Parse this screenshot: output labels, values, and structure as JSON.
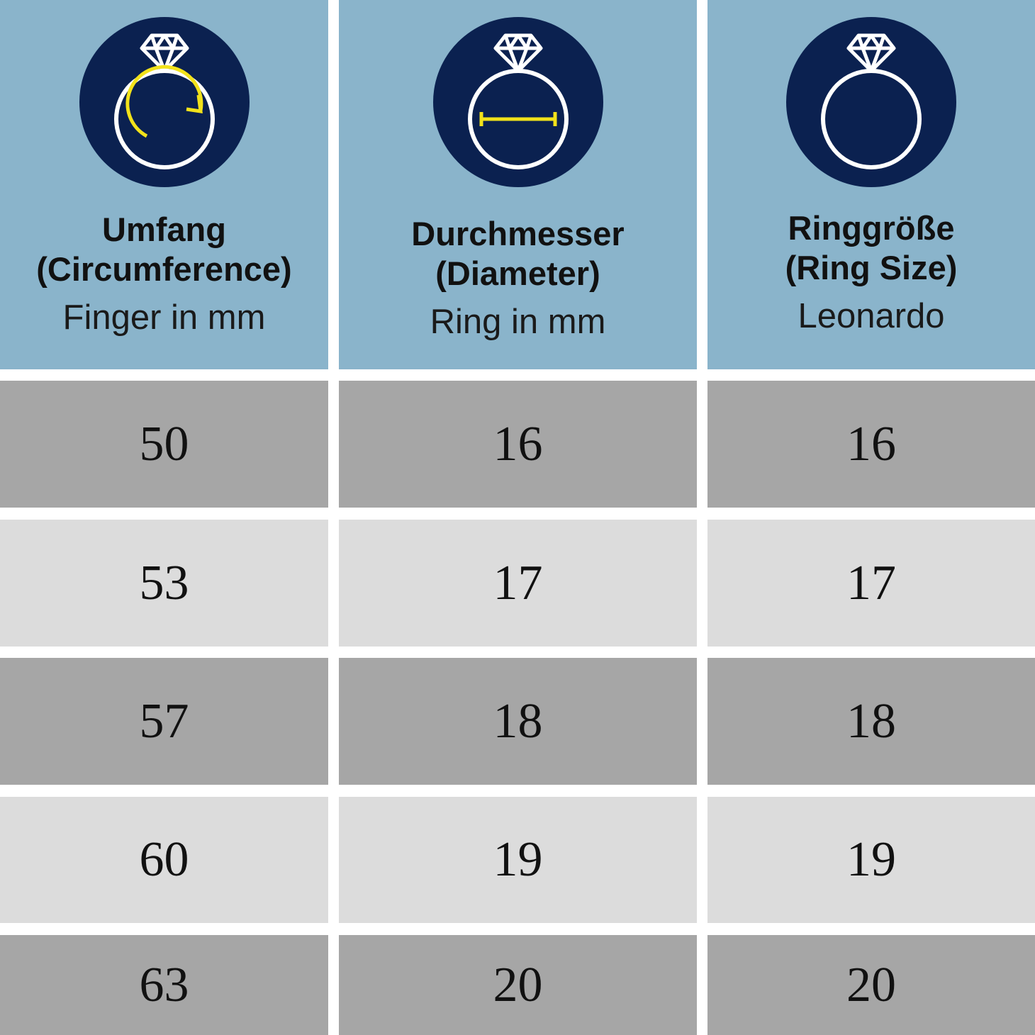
{
  "colors": {
    "header": "#8ab4cb",
    "icon_circle": "#0b2150",
    "accent": "#f2e21a",
    "row_dark": "#a6a6a6",
    "row_light": "#dcdcdc"
  },
  "columns": [
    {
      "title_line1": "Umfang",
      "title_line2": "(Circumference)",
      "subtitle": "Finger in mm",
      "icon": "ring-circumference-icon",
      "values": [
        "50",
        "53",
        "57",
        "60",
        "63"
      ]
    },
    {
      "title_line1": "Durchmesser",
      "title_line2": "(Diameter)",
      "subtitle": "Ring in mm",
      "icon": "ring-diameter-icon",
      "values": [
        "16",
        "17",
        "18",
        "19",
        "20"
      ]
    },
    {
      "title_line1": "Ringgröße",
      "title_line2": "(Ring Size)",
      "subtitle": "Leonardo",
      "icon": "ring-size-icon",
      "values": [
        "16",
        "17",
        "18",
        "19",
        "20"
      ]
    }
  ]
}
